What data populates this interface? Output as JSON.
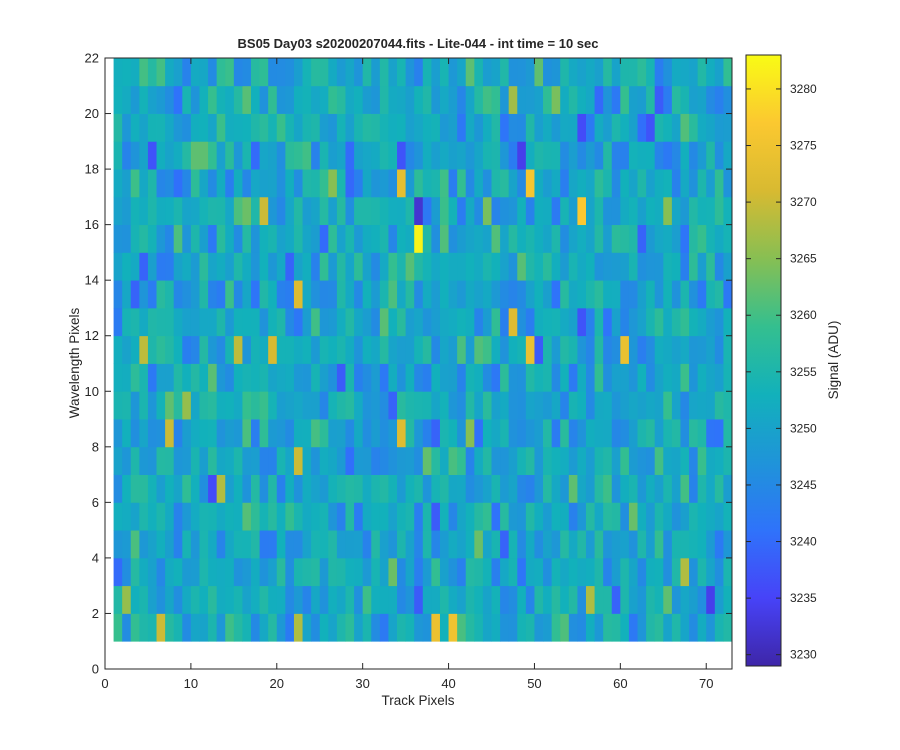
{
  "chart_data": {
    "type": "heatmap",
    "title": "BS05 Day03  s20200207044.fits - Lite-044 - int time = 10 sec",
    "xlabel": "Track Pixels",
    "ylabel": "Wavelength Pixels",
    "xlim": [
      0,
      73
    ],
    "ylim": [
      0,
      22
    ],
    "x_ticks": [
      "0",
      "10",
      "20",
      "30",
      "40",
      "50",
      "60",
      "70"
    ],
    "y_ticks": [
      "0",
      "2",
      "4",
      "6",
      "8",
      "10",
      "12",
      "14",
      "16",
      "18",
      "20",
      "22"
    ],
    "x_range": [
      1,
      72
    ],
    "y_range": [
      1,
      21
    ],
    "n_cols": 72,
    "n_rows": 21,
    "colorbar": {
      "label": "Signal (ADU)",
      "min": 3229,
      "max": 3283,
      "ticks": [
        "3230",
        "3235",
        "3240",
        "3245",
        "3250",
        "3255",
        "3260",
        "3265",
        "3270",
        "3275",
        "3280"
      ],
      "colormap": [
        "#3e26a8",
        "#4743f8",
        "#2f73fa",
        "#1f94d9",
        "#12b1bb",
        "#34bf8f",
        "#87bf53",
        "#d8ba31",
        "#fbc830",
        "#f9fb15"
      ]
    },
    "base_level": 3251,
    "highlights": [
      {
        "x": 36.5,
        "y": 15.5,
        "value": 3282
      },
      {
        "x": 55.5,
        "y": 16.5,
        "value": 3277
      },
      {
        "x": 49.5,
        "y": 17.5,
        "value": 3276
      },
      {
        "x": 34.5,
        "y": 17.5,
        "value": 3273
      },
      {
        "x": 38.5,
        "y": 1.5,
        "value": 3274
      },
      {
        "x": 40.5,
        "y": 1.5,
        "value": 3275
      },
      {
        "x": 49.5,
        "y": 11.5,
        "value": 3274
      },
      {
        "x": 60.5,
        "y": 11.5,
        "value": 3274
      },
      {
        "x": 47.5,
        "y": 12.5,
        "value": 3272
      },
      {
        "x": 34.5,
        "y": 8.5,
        "value": 3272
      },
      {
        "x": 22.5,
        "y": 13.5,
        "value": 3272
      },
      {
        "x": 19.5,
        "y": 11.5,
        "value": 3271
      },
      {
        "x": 15.5,
        "y": 11.5,
        "value": 3269
      },
      {
        "x": 4.5,
        "y": 11.5,
        "value": 3269
      },
      {
        "x": 18.5,
        "y": 16.5,
        "value": 3270
      },
      {
        "x": 22.5,
        "y": 7.5,
        "value": 3270
      },
      {
        "x": 7.5,
        "y": 8.5,
        "value": 3270
      },
      {
        "x": 6.5,
        "y": 1.5,
        "value": 3270
      },
      {
        "x": 22.5,
        "y": 1.5,
        "value": 3268
      },
      {
        "x": 67.5,
        "y": 3.5,
        "value": 3268
      },
      {
        "x": 56.5,
        "y": 2.5,
        "value": 3268
      },
      {
        "x": 2.5,
        "y": 2.5,
        "value": 3266
      },
      {
        "x": 13.5,
        "y": 6.5,
        "value": 3268
      },
      {
        "x": 65.5,
        "y": 16.5,
        "value": 3265
      },
      {
        "x": 47.5,
        "y": 20.5,
        "value": 3267
      },
      {
        "x": 10.5,
        "y": 18.5,
        "value": 3262
      },
      {
        "x": 11.5,
        "y": 18.5,
        "value": 3262
      },
      {
        "x": 26.5,
        "y": 17.5,
        "value": 3265
      },
      {
        "x": 42.5,
        "y": 8.5,
        "value": 3265
      },
      {
        "x": 9.5,
        "y": 9.5,
        "value": 3266
      },
      {
        "x": 44.5,
        "y": 16.5,
        "value": 3264
      },
      {
        "x": 52.5,
        "y": 20.5,
        "value": 3264
      },
      {
        "x": 33.5,
        "y": 3.5,
        "value": 3263
      },
      {
        "x": 16.5,
        "y": 16.5,
        "value": 3263
      },
      {
        "x": 43.5,
        "y": 4.5,
        "value": 3263
      }
    ],
    "lowlights": [
      {
        "x": 36.5,
        "y": 16.5,
        "value": 3232
      },
      {
        "x": 55.5,
        "y": 19.5,
        "value": 3236
      },
      {
        "x": 48.5,
        "y": 18.5,
        "value": 3234
      },
      {
        "x": 70.5,
        "y": 2.5,
        "value": 3234
      },
      {
        "x": 34.5,
        "y": 18.5,
        "value": 3237
      },
      {
        "x": 5.5,
        "y": 18.5,
        "value": 3237
      },
      {
        "x": 63.5,
        "y": 19.5,
        "value": 3237
      },
      {
        "x": 64.5,
        "y": 20.5,
        "value": 3238
      },
      {
        "x": 50.5,
        "y": 11.5,
        "value": 3238
      },
      {
        "x": 55.5,
        "y": 12.5,
        "value": 3237
      },
      {
        "x": 27.5,
        "y": 10.5,
        "value": 3238
      },
      {
        "x": 33.5,
        "y": 9.5,
        "value": 3239
      },
      {
        "x": 38.5,
        "y": 8.5,
        "value": 3239
      },
      {
        "x": 12.5,
        "y": 6.5,
        "value": 3236
      },
      {
        "x": 38.5,
        "y": 5.5,
        "value": 3238
      },
      {
        "x": 1.5,
        "y": 3.5,
        "value": 3240
      },
      {
        "x": 36.5,
        "y": 2.5,
        "value": 3238
      },
      {
        "x": 46.5,
        "y": 4.5,
        "value": 3239
      },
      {
        "x": 3.5,
        "y": 13.5,
        "value": 3239
      },
      {
        "x": 21.5,
        "y": 14.5,
        "value": 3239
      },
      {
        "x": 4.5,
        "y": 14.5,
        "value": 3239
      },
      {
        "x": 28.5,
        "y": 18.5,
        "value": 3240
      },
      {
        "x": 71.5,
        "y": 8.5,
        "value": 3241
      },
      {
        "x": 62.5,
        "y": 15.5,
        "value": 3239
      },
      {
        "x": 54.5,
        "y": 8.5,
        "value": 3244
      },
      {
        "x": 53.5,
        "y": 9.5,
        "value": 3244
      },
      {
        "x": 25.5,
        "y": 15.5,
        "value": 3240
      },
      {
        "x": 8.5,
        "y": 20.5,
        "value": 3241
      },
      {
        "x": 17.5,
        "y": 18.5,
        "value": 3240
      },
      {
        "x": 52.5,
        "y": 13.5,
        "value": 3241
      }
    ]
  }
}
